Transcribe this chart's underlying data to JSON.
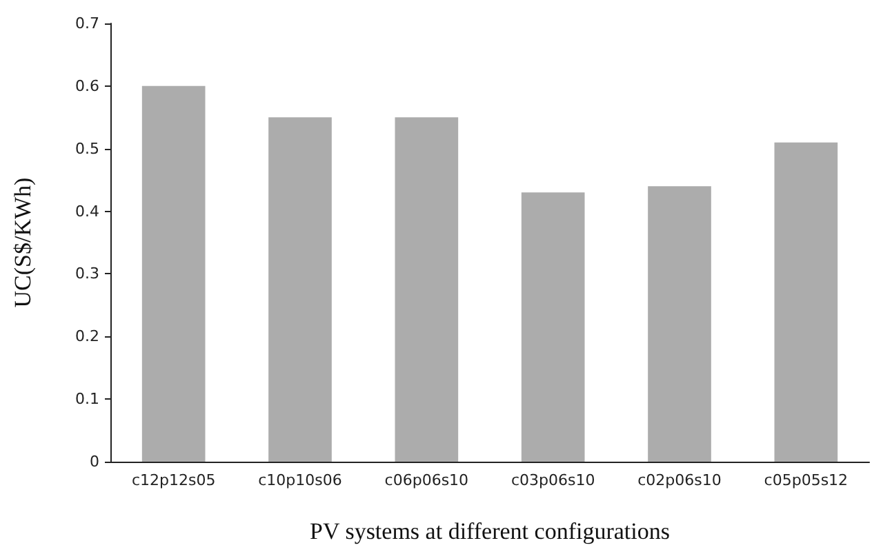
{
  "chart_data": {
    "type": "bar",
    "xlabel": "PV systems at different configurations",
    "ylabel": "UC(S$/KWh)",
    "categories": [
      "c12p12s05",
      "c10p10s06",
      "c06p06s10",
      "c03p06s10",
      "c02p06s10",
      "c05p05s12"
    ],
    "values": [
      0.6,
      0.55,
      0.55,
      0.43,
      0.44,
      0.51
    ],
    "color": "#acacac",
    "ylim": [
      0,
      0.7
    ],
    "yticks": [
      0,
      0.1,
      0.2,
      0.3,
      0.4,
      0.5,
      0.6,
      0.7
    ],
    "grid": false
  }
}
